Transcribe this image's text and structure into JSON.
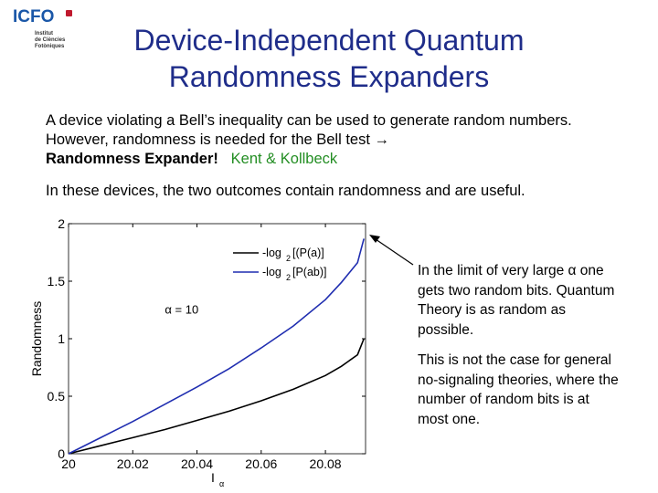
{
  "logo": {
    "name": "ICFO",
    "subtitle_lines": [
      "Institut",
      "de Ciències",
      "Fotòniques"
    ]
  },
  "title_lines": [
    "Device-Independent Quantum",
    "Randomness Expanders"
  ],
  "paragraph1": {
    "text": "A device violating a Bell’s inequality can be used to generate random numbers. However, randomness is needed for the Bell test →",
    "bold": "Randomness Expander!",
    "authors": "Kent & Kollbeck"
  },
  "paragraph2": "In these devices, the two outcomes contain randomness and are useful.",
  "side_text_1": "In the limit of very large α one gets two random bits. Quantum Theory is as random as possible.",
  "side_text_2": "This is not the case for general no-signaling theories, where the number of random bits is at most one.",
  "colors": {
    "title": "#1f2d8a",
    "authors": "#238e23",
    "series_black": "#000000",
    "series_blue": "#1f2db0"
  },
  "chart_data": {
    "type": "line",
    "xlabel": "I",
    "xlabel_subscript": "α",
    "ylabel": "Randomness",
    "xlim": [
      20,
      20.0925
    ],
    "ylim": [
      0,
      2
    ],
    "xticks": [
      "20",
      "20.02",
      "20.04",
      "20.06",
      "20.08"
    ],
    "xtick_values": [
      20,
      20.02,
      20.04,
      20.06,
      20.08
    ],
    "yticks": [
      "0",
      "0.5",
      "1",
      "1.5",
      "2"
    ],
    "ytick_values": [
      0,
      0.5,
      1,
      1.5,
      2
    ],
    "annotation": "α = 10",
    "annotation_pos": [
      20.03,
      1.22
    ],
    "legend_position": "top-right",
    "series": [
      {
        "name": "-log₂[(P(a)]",
        "legend_main": "-log",
        "legend_sub": "2",
        "legend_rest": "[(P(a)]",
        "color": "#000000",
        "x": [
          20,
          20.01,
          20.02,
          20.03,
          20.04,
          20.05,
          20.06,
          20.07,
          20.08,
          20.085,
          20.09,
          20.092
        ],
        "y": [
          0,
          0.07,
          0.14,
          0.21,
          0.29,
          0.37,
          0.46,
          0.56,
          0.68,
          0.76,
          0.86,
          1.0
        ]
      },
      {
        "name": "-log₂[P(ab)]",
        "legend_main": "-log",
        "legend_sub": "2",
        "legend_rest": "[P(ab)]",
        "color": "#1f2db0",
        "x": [
          20,
          20.01,
          20.02,
          20.03,
          20.04,
          20.05,
          20.06,
          20.07,
          20.08,
          20.085,
          20.09,
          20.092
        ],
        "y": [
          0,
          0.14,
          0.28,
          0.43,
          0.58,
          0.74,
          0.92,
          1.11,
          1.34,
          1.49,
          1.66,
          1.87
        ]
      }
    ]
  }
}
